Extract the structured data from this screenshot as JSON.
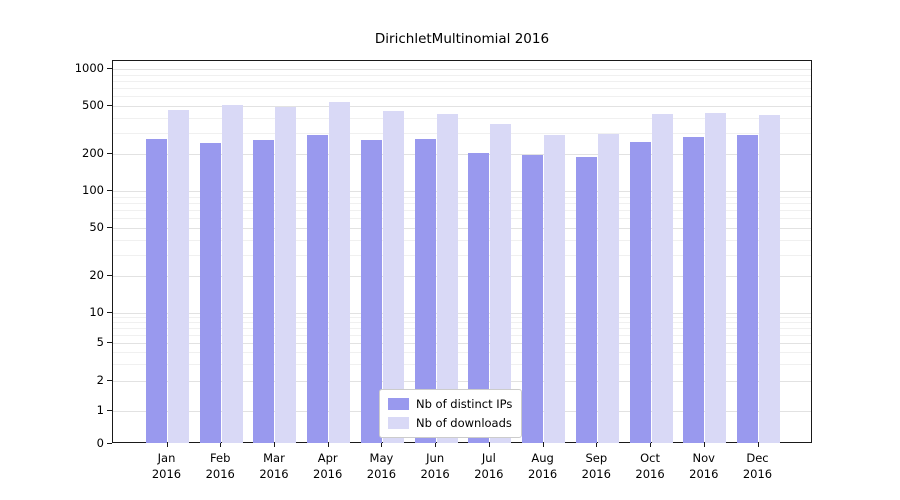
{
  "title": "DirichletMultinomial 2016",
  "chart_data": {
    "type": "bar",
    "title": "DirichletMultinomial 2016",
    "yscale": "symlog",
    "ylim": [
      0,
      1000
    ],
    "grid": true,
    "legend_position": "lower center",
    "categories": [
      "Jan",
      "Feb",
      "Mar",
      "Apr",
      "May",
      "Jun",
      "Jul",
      "Aug",
      "Sep",
      "Oct",
      "Nov",
      "Dec"
    ],
    "xtick_year": "2016",
    "yticks": [
      0,
      1,
      2,
      5,
      10,
      20,
      50,
      100,
      200,
      500,
      1000
    ],
    "series": [
      {
        "name": "Nb of distinct IPs",
        "color": "#9999ee",
        "values": [
          265,
          248,
          262,
          290,
          262,
          266,
          205,
          197,
          190,
          252,
          275,
          288
        ]
      },
      {
        "name": "Nb of downloads",
        "color": "#d9d9f6",
        "values": [
          460,
          510,
          485,
          535,
          450,
          430,
          355,
          290,
          292,
          430,
          435,
          420
        ]
      }
    ]
  }
}
